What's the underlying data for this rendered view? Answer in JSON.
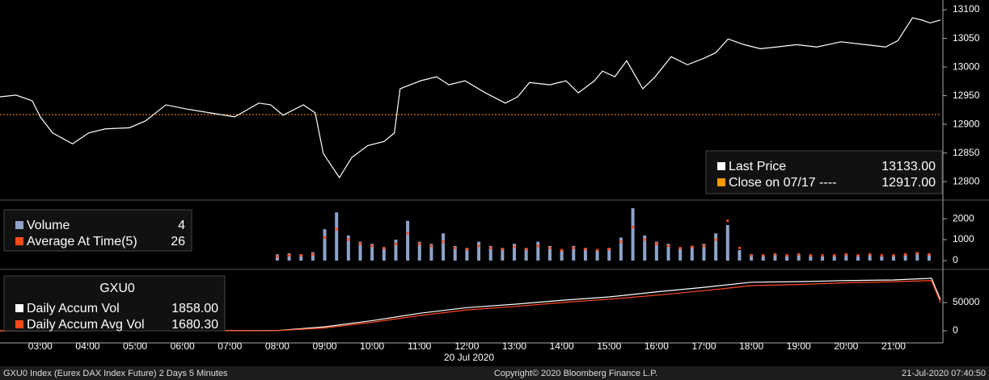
{
  "chart_data": [
    {
      "type": "line",
      "series": [
        {
          "name": "Last Price",
          "color": "#ffffff",
          "legend_value": "13133.00",
          "x": [
            2.15,
            2.49,
            2.83,
            3.0,
            3.26,
            3.68,
            4.02,
            4.37,
            4.88,
            5.22,
            5.65,
            6.07,
            6.58,
            7.1,
            7.61,
            7.86,
            8.12,
            8.55,
            8.8,
            8.97,
            9.31,
            9.57,
            9.91,
            10.25,
            10.47,
            10.59,
            11.02,
            11.36,
            11.62,
            11.96,
            12.39,
            12.81,
            13.07,
            13.32,
            13.75,
            14.09,
            14.35,
            14.69,
            14.86,
            15.12,
            15.37,
            15.71,
            15.97,
            16.31,
            16.65,
            16.99,
            17.25,
            17.51,
            17.85,
            18.19,
            18.53,
            18.96,
            19.38,
            19.89,
            20.41,
            20.83,
            21.09,
            21.4,
            21.6,
            21.77,
            21.99
          ],
          "values": [
            12948,
            12951,
            12941,
            12913,
            12885,
            12866,
            12885,
            12892,
            12894,
            12906,
            12934,
            12927,
            12920,
            12913,
            12937,
            12934,
            12916,
            12934,
            12920,
            12849,
            12807,
            12842,
            12863,
            12870,
            12885,
            12962,
            12976,
            12983,
            12969,
            12976,
            12955,
            12937,
            12948,
            12973,
            12969,
            12976,
            12955,
            12976,
            12993,
            12983,
            13011,
            12962,
            12983,
            13018,
            13004,
            13015,
            13025,
            13049,
            13039,
            13032,
            13035,
            13039,
            13035,
            13044,
            13039,
            13035,
            13046,
            13086,
            13082,
            13077,
            13082
          ]
        }
      ],
      "reference_lines": [
        {
          "name": "Close on 07/17 ----",
          "color": "#ff9900",
          "value": 12917,
          "label": "12917.00"
        }
      ],
      "ylim": [
        12772,
        13117
      ],
      "yticks": [
        12800,
        12850,
        12900,
        12950,
        13000,
        13050,
        13100
      ]
    },
    {
      "type": "bar",
      "x": [
        8,
        8.25,
        8.5,
        8.75,
        9,
        9.25,
        9.5,
        9.75,
        10,
        10.25,
        10.5,
        10.75,
        11,
        11.25,
        11.5,
        11.75,
        12,
        12.25,
        12.5,
        12.75,
        13,
        13.25,
        13.5,
        13.75,
        14,
        14.25,
        14.5,
        14.75,
        15,
        15.25,
        15.5,
        15.75,
        16,
        16.25,
        16.5,
        16.75,
        17,
        17.25,
        17.5,
        17.75,
        18,
        18.25,
        18.5,
        18.75,
        19,
        19.25,
        19.5,
        19.75,
        20,
        20.25,
        20.5,
        20.75,
        21,
        21.25,
        21.5,
        21.75
      ],
      "series": [
        {
          "name": "Volume",
          "color": "#8ea3c9",
          "legend_value": "4",
          "values": [
            300,
            350,
            300,
            400,
            1500,
            2300,
            1200,
            900,
            800,
            600,
            1000,
            1900,
            900,
            800,
            1300,
            700,
            600,
            900,
            700,
            600,
            800,
            600,
            900,
            700,
            500,
            700,
            600,
            500,
            600,
            1100,
            2500,
            1200,
            900,
            800,
            600,
            700,
            800,
            1300,
            1700,
            500,
            300,
            250,
            300,
            250,
            300,
            250,
            200,
            250,
            300,
            250,
            300,
            200,
            250,
            300,
            400,
            300
          ]
        },
        {
          "name": "Average At Time(5)",
          "color": "#ff4a1a",
          "legend_value": "26",
          "marker": "square",
          "values": [
            200,
            250,
            250,
            300,
            1100,
            1500,
            1000,
            800,
            700,
            600,
            800,
            1300,
            800,
            700,
            900,
            600,
            550,
            700,
            600,
            550,
            650,
            550,
            700,
            600,
            500,
            600,
            550,
            500,
            550,
            900,
            1600,
            1000,
            800,
            700,
            600,
            650,
            700,
            1000,
            1900,
            600,
            250,
            250,
            300,
            250,
            300,
            250,
            250,
            250,
            300,
            250,
            300,
            250,
            250,
            300,
            350,
            300
          ]
        }
      ],
      "ylim": [
        -270,
        2620
      ],
      "yticks": [
        0,
        1000,
        2000
      ]
    },
    {
      "type": "line",
      "title": "GXU0",
      "x": [
        2.15,
        8,
        9,
        10,
        11,
        12,
        13,
        14,
        15,
        16,
        17,
        18,
        19,
        20,
        21,
        21.8,
        21.99
      ],
      "series": [
        {
          "name": "Daily Accum Vol",
          "color": "#ffffff",
          "legend_value": "1858.00",
          "values": [
            0,
            500,
            7000,
            18000,
            31000,
            41000,
            47000,
            54000,
            60000,
            69000,
            77000,
            86000,
            87000,
            89000,
            90000,
            93000,
            55000
          ]
        },
        {
          "name": "Daily Accum Avg Vol",
          "color": "#ff4a1a",
          "legend_value": "1680.30",
          "values": [
            0,
            300,
            5000,
            15000,
            27000,
            37000,
            43000,
            50000,
            56000,
            63000,
            71000,
            80000,
            82000,
            85000,
            87000,
            89000,
            50000
          ]
        }
      ],
      "ylim": [
        -21400,
        102900
      ],
      "yticks": [
        0,
        50000
      ],
      "xlim": [
        2.15,
        21.99
      ],
      "xticks": [
        {
          "value": 3,
          "label": "03:00"
        },
        {
          "value": 4,
          "label": "04:00"
        },
        {
          "value": 5,
          "label": "05:00"
        },
        {
          "value": 6,
          "label": "06:00"
        },
        {
          "value": 7,
          "label": "07:00"
        },
        {
          "value": 8,
          "label": "08:00"
        },
        {
          "value": 9,
          "label": "09:00"
        },
        {
          "value": 10,
          "label": "10:00"
        },
        {
          "value": 11,
          "label": "11:00"
        },
        {
          "value": 12,
          "label": "12:00"
        },
        {
          "value": 13,
          "label": "13:00"
        },
        {
          "value": 14,
          "label": "14:00"
        },
        {
          "value": 15,
          "label": "15:00"
        },
        {
          "value": 16,
          "label": "16:00"
        },
        {
          "value": 17,
          "label": "17:00"
        },
        {
          "value": 18,
          "label": "18:00"
        },
        {
          "value": 19,
          "label": "19:00"
        },
        {
          "value": 20,
          "label": "20:00"
        },
        {
          "value": 21,
          "label": "21:00"
        }
      ],
      "x_label": "20 Jul 2020"
    }
  ],
  "footer": {
    "left": "GXU0 Index (Eurex DAX Index Future) 2 Days 5 Minutes",
    "center": "Copyright© 2020 Bloomberg Finance L.P.",
    "right": "21-Jul-2020 07:40:50"
  }
}
